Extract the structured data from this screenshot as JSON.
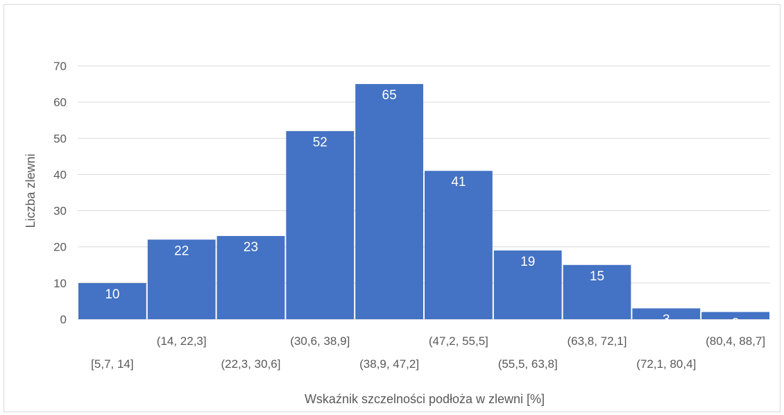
{
  "chart_data": {
    "type": "bar",
    "title": "",
    "xlabel": "Wskaźnik szczelności podłoża w zlewni [%]",
    "ylabel": "Liczba  zlewni",
    "categories": [
      "[5,7, 14]",
      "(14, 22,3]",
      "(22,3, 30,6]",
      "(30,6, 38,9]",
      "(38,9, 47,2]",
      "(47,2, 55,5]",
      "(55,5, 63,8]",
      "(63,8, 72,1]",
      "(72,1, 80,4]",
      "(80,4, 88,7]"
    ],
    "values": [
      10,
      22,
      23,
      52,
      65,
      41,
      19,
      15,
      3,
      2
    ],
    "data_labels": [
      "10",
      "22",
      "23",
      "52",
      "65",
      "41",
      "19",
      "15",
      "3",
      "2"
    ],
    "ylim": [
      0,
      70
    ],
    "yticks": [
      0,
      10,
      20,
      30,
      40,
      50,
      60,
      70
    ],
    "ytick_labels": [
      "0",
      "10",
      "20",
      "30",
      "40",
      "50",
      "60",
      "70"
    ],
    "grid": true,
    "legend": "none",
    "colors": {
      "bar": "#4472C4",
      "grid": "#d9d9d9",
      "text": "#595959",
      "label": "#ffffff"
    }
  }
}
